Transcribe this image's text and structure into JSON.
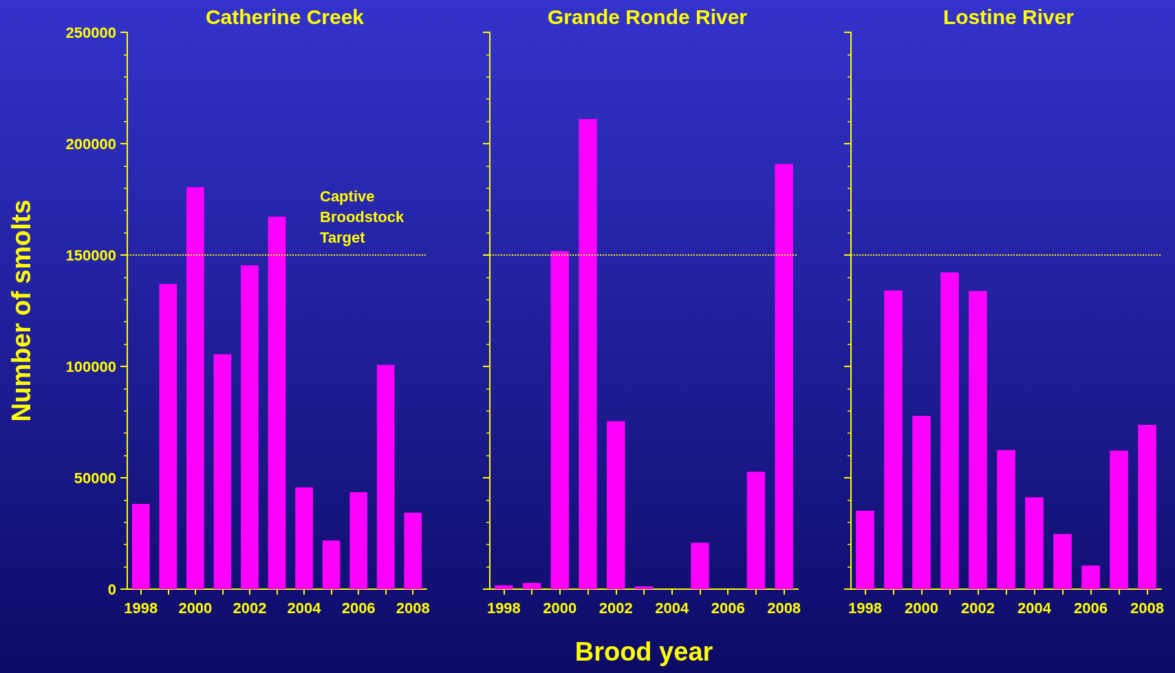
{
  "chart_data": [
    {
      "type": "bar",
      "title": "Catherine Creek",
      "ylabel": "Number of smolts",
      "categories": [
        "1998",
        null,
        "2000",
        null,
        "2002",
        null,
        "2004",
        null,
        "2006",
        null,
        "2008"
      ],
      "series": [
        {
          "color": "#ff00ff",
          "values": [
            38300,
            137000,
            180500,
            105500,
            145400,
            167200,
            45700,
            21800,
            43500,
            100700,
            34300
          ]
        }
      ],
      "ylim": [
        0,
        250000
      ],
      "yticks": [
        0,
        50000,
        100000,
        150000,
        200000,
        250000
      ],
      "grid": false,
      "ref_lines": [
        {
          "axis": "y",
          "value": 150000,
          "label": "Captive Broodstock Target",
          "color": "#ffff00",
          "line_style": "dotted"
        }
      ]
    },
    {
      "type": "bar",
      "title": "Grande Ronde River",
      "xlabel": "Brood year",
      "categories": [
        "1998",
        null,
        "2000",
        null,
        "2002",
        null,
        "2004",
        null,
        "2006",
        null,
        "2008"
      ],
      "series": [
        {
          "color": "#ff00ff",
          "values": [
            1700,
            2800,
            151800,
            211000,
            75400,
            1200,
            0,
            20800,
            0,
            52700,
            190900
          ]
        }
      ],
      "ylim": [
        0,
        250000
      ],
      "yticks": [
        0,
        50000,
        100000,
        150000,
        200000,
        250000
      ],
      "grid": false,
      "tick_labels": "x",
      "ref_lines": [
        {
          "axis": "y",
          "value": 150000,
          "color": "#ffff00",
          "line_style": "dotted"
        }
      ]
    },
    {
      "type": "bar",
      "title": "Lostine River",
      "categories": [
        "1998",
        null,
        "2000",
        null,
        "2002",
        null,
        "2004",
        null,
        "2006",
        null,
        "2008"
      ],
      "series": [
        {
          "color": "#ff00ff",
          "values": [
            35200,
            134100,
            77800,
            142200,
            133900,
            62400,
            41200,
            24800,
            10600,
            62200,
            73800
          ]
        }
      ],
      "ylim": [
        0,
        250000
      ],
      "yticks": [
        0,
        50000,
        100000,
        150000,
        200000,
        250000
      ],
      "grid": false,
      "tick_labels": "x",
      "ref_lines": [
        {
          "axis": "y",
          "value": 150000,
          "color": "#ffff00",
          "line_style": "dotted"
        }
      ]
    }
  ]
}
